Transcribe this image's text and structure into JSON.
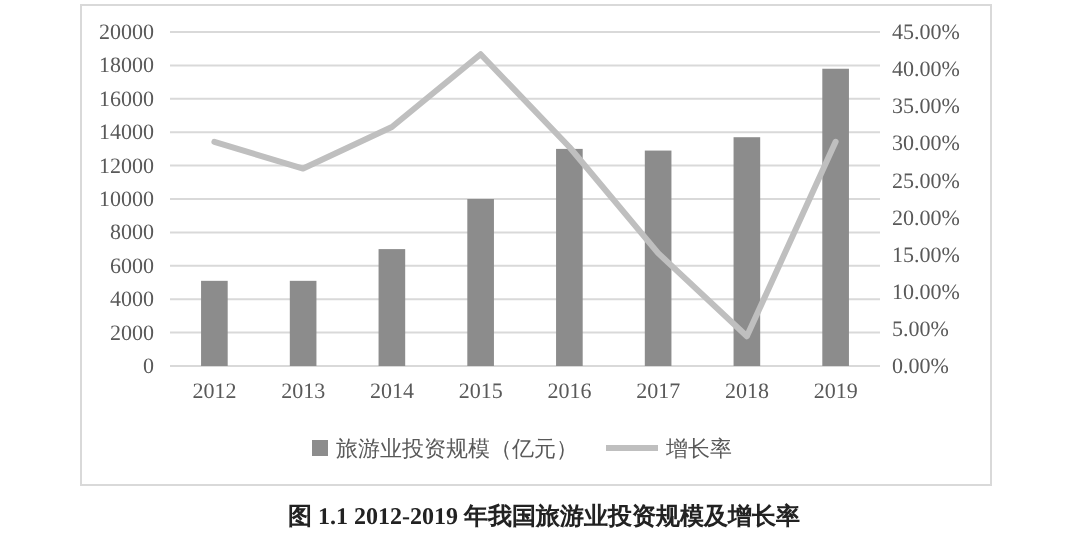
{
  "chart_data": {
    "type": "bar",
    "title": "图 1.1   2012-2019 年我国旅游业投资规模及增长率",
    "categories": [
      "2012",
      "2013",
      "2014",
      "2015",
      "2016",
      "2017",
      "2018",
      "2019"
    ],
    "series": [
      {
        "name": "旅游业投资规模（亿元）",
        "color": "#8c8c8c",
        "values": [
          5100,
          5100,
          7000,
          10000,
          13000,
          12900,
          13700,
          17800
        ]
      },
      {
        "name": "增长率",
        "type": "line",
        "axis": "y2",
        "color": "#bfbfbf",
        "values": [
          30.2,
          26.6,
          32.2,
          42.0,
          29.5,
          15.2,
          4.0,
          30.2
        ]
      }
    ],
    "ylim": [
      0,
      20000
    ],
    "yticks": [
      0,
      2000,
      4000,
      6000,
      8000,
      10000,
      12000,
      14000,
      16000,
      18000,
      20000
    ],
    "y2lim": [
      0,
      45
    ],
    "y2ticks": [
      {
        "value": 0,
        "label": "0.00%"
      },
      {
        "value": 5,
        "label": "5.00%"
      },
      {
        "value": 10,
        "label": "10.00%"
      },
      {
        "value": 15,
        "label": "15.00%"
      },
      {
        "value": 20,
        "label": "20.00%"
      },
      {
        "value": 25,
        "label": "25.00%"
      },
      {
        "value": 30,
        "label": "30.00%"
      },
      {
        "value": 35,
        "label": "35.00%"
      },
      {
        "value": 40,
        "label": "40.00%"
      },
      {
        "value": 45,
        "label": "45.00%"
      }
    ],
    "grid": "y",
    "legend": "bottom"
  }
}
